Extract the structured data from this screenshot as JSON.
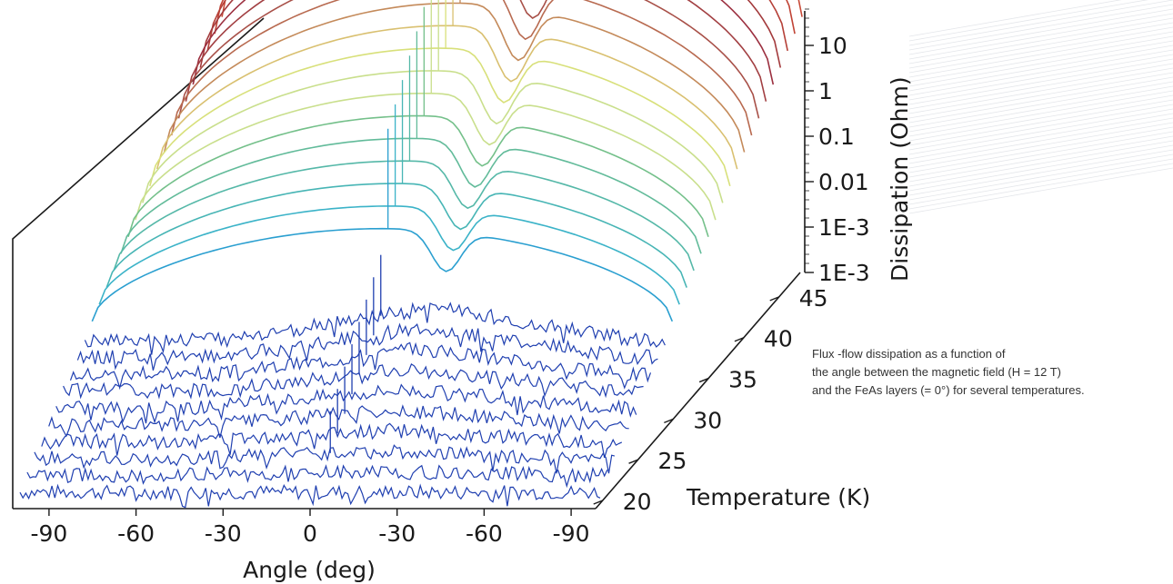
{
  "chart_data": {
    "type": "line",
    "subtype": "3d-waterfall",
    "title": "",
    "xlabel": "Angle (deg)",
    "ylabel": "Temperature (K)",
    "zlabel": "Dissipation (Ohm)",
    "x_tick_labels": [
      "-90",
      "-60",
      "-30",
      "0",
      "-30",
      "-60",
      "-90"
    ],
    "x_range": [
      -100,
      100
    ],
    "y_tick_labels": [
      "20",
      "25",
      "30",
      "35",
      "40",
      "45"
    ],
    "y_range": [
      19,
      48
    ],
    "z_tick_labels": [
      "1E-3",
      "1E-3",
      "0.01",
      "0.1",
      "1",
      "10"
    ],
    "z_scale": "log",
    "grid": false,
    "temperatures": [
      19,
      20,
      21,
      22,
      23,
      24,
      25,
      26,
      27,
      28,
      29,
      30,
      31,
      32,
      33,
      34,
      35,
      36,
      37,
      38,
      39,
      40,
      41,
      42,
      43,
      44,
      45,
      46,
      47,
      48
    ],
    "series_colors": [
      "#1f3fb0",
      "#1f3fb0",
      "#1f3fb0",
      "#1f3fb0",
      "#1f3fb0",
      "#1f3fb0",
      "#1f3fb0",
      "#1f3fb0",
      "#1f3fb0",
      "#1f3fb0",
      "#2a9fd0",
      "#3bb3c8",
      "#47b5b5",
      "#55b8a8",
      "#62bb9a",
      "#74c08a",
      "#c9df8c",
      "#c9df8c",
      "#d8e07a",
      "#d9c070",
      "#c48a5a",
      "#b86a50",
      "#a85048",
      "#a23f42",
      "#9c3040",
      "#a33a3c",
      "#b54038",
      "#c04436",
      "#c84a38",
      "#cc5038"
    ],
    "noise_temperature_limit": 28
  },
  "caption": {
    "lines": [
      "Flux -flow dissipation as a function of",
      "the angle between the magnetic field (H = 12 T)",
      "and the FeAs layers (= 0°) for several temperatures."
    ]
  }
}
